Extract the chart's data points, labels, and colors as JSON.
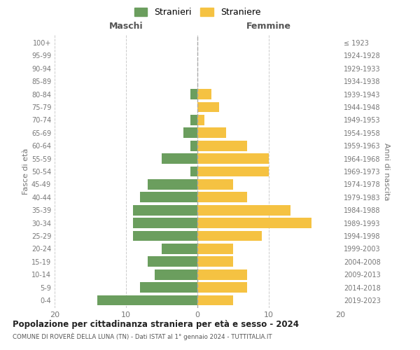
{
  "age_groups": [
    "0-4",
    "5-9",
    "10-14",
    "15-19",
    "20-24",
    "25-29",
    "30-34",
    "35-39",
    "40-44",
    "45-49",
    "50-54",
    "55-59",
    "60-64",
    "65-69",
    "70-74",
    "75-79",
    "80-84",
    "85-89",
    "90-94",
    "95-99",
    "100+"
  ],
  "birth_years": [
    "2019-2023",
    "2014-2018",
    "2009-2013",
    "2004-2008",
    "1999-2003",
    "1994-1998",
    "1989-1993",
    "1984-1988",
    "1979-1983",
    "1974-1978",
    "1969-1973",
    "1964-1968",
    "1959-1963",
    "1954-1958",
    "1949-1953",
    "1944-1948",
    "1939-1943",
    "1934-1938",
    "1929-1933",
    "1924-1928",
    "≤ 1923"
  ],
  "maschi": [
    14,
    8,
    6,
    7,
    5,
    9,
    9,
    9,
    8,
    7,
    1,
    5,
    1,
    2,
    1,
    0,
    1,
    0,
    0,
    0,
    0
  ],
  "femmine": [
    5,
    7,
    7,
    5,
    5,
    9,
    16,
    13,
    7,
    5,
    10,
    10,
    7,
    4,
    1,
    3,
    2,
    0,
    0,
    0,
    0
  ],
  "color_maschi": "#6b9e5e",
  "color_femmine": "#f5c242",
  "title": "Popolazione per cittadinanza straniera per età e sesso - 2024",
  "subtitle": "COMUNE DI ROVERÈ DELLA LUNA (TN) - Dati ISTAT al 1° gennaio 2024 - TUTTITALIA.IT",
  "left_label": "Maschi",
  "right_label": "Femmine",
  "ylabel_left": "Fasce di età",
  "ylabel_right": "Anni di nascita",
  "xlim": 20,
  "background_color": "#ffffff",
  "grid_color": "#cccccc",
  "legend_label_m": "Stranieri",
  "legend_label_f": "Straniere"
}
